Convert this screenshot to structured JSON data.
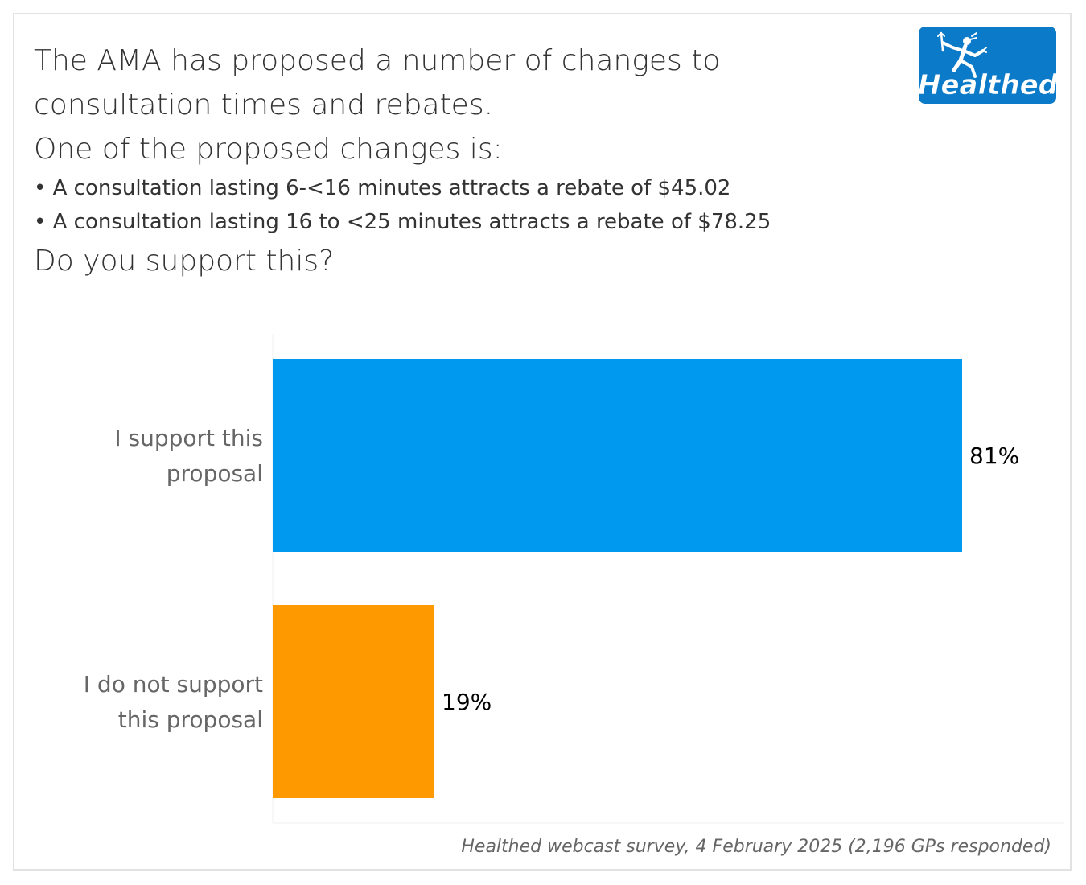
{
  "header": {
    "title_lines": [
      "The AMA has proposed a number of changes to",
      "consultation times and rebates.",
      "One of the proposed changes is:"
    ],
    "bullets": [
      "• A consultation lasting 6-<16 minutes attracts a rebate of $45.02",
      "• A consultation lasting 16 to <25 minutes attracts a rebate of $78.25"
    ],
    "question": "Do you support this?"
  },
  "logo": {
    "text": "Healthed",
    "icon": "hermes-figure-icon"
  },
  "chart_data": {
    "type": "bar",
    "orientation": "horizontal",
    "categories": [
      [
        "I support this",
        "proposal"
      ],
      [
        "I do not support",
        "this proposal"
      ]
    ],
    "values": [
      81,
      19
    ],
    "value_labels": [
      "81%",
      "19%"
    ],
    "unit": "%",
    "colors": [
      "#0099f0",
      "#ff9900"
    ],
    "xlim": [
      0,
      100
    ],
    "grid": false,
    "title": "",
    "xlabel": "",
    "ylabel": ""
  },
  "footer": {
    "source": "Healthed webcast survey, 4 February 2025 (2,196 GPs responded)"
  }
}
